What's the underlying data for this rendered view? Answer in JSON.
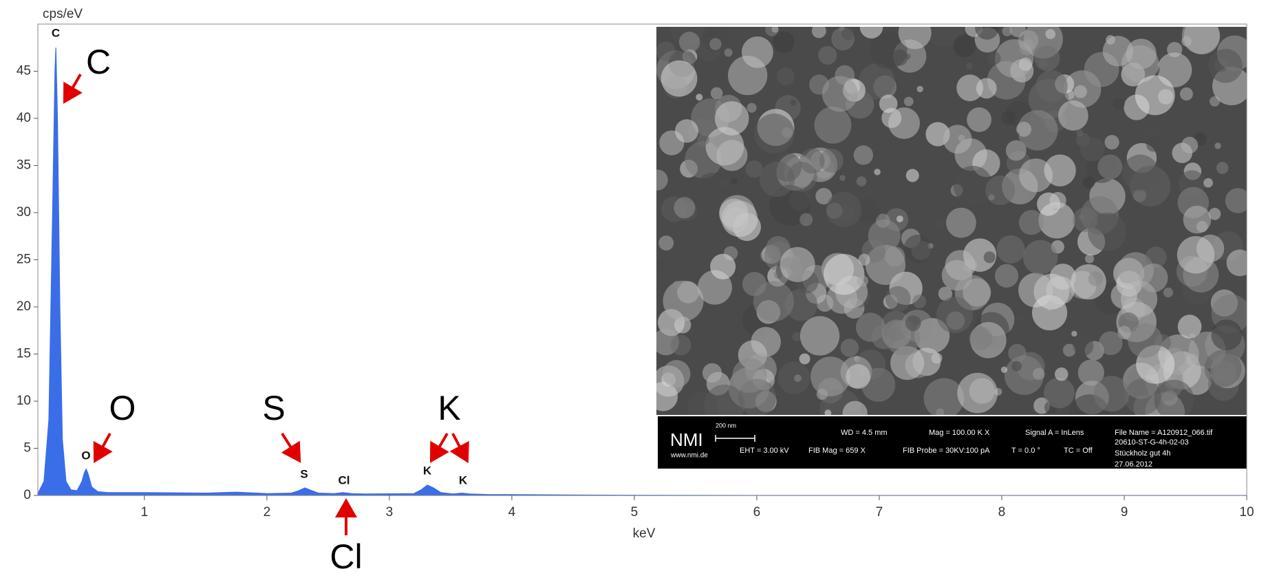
{
  "chart_data": {
    "type": "area",
    "x_label": "keV",
    "y_label": "cps/eV",
    "color": "#3a6ee8",
    "xlim": [
      0.13,
      10
    ],
    "ylim": [
      0,
      50
    ],
    "xticks": [
      1,
      2,
      3,
      4,
      5,
      6,
      7,
      8,
      9,
      10
    ],
    "yticks": [
      0,
      5,
      10,
      15,
      20,
      25,
      30,
      35,
      40,
      45
    ],
    "x": [
      0.13,
      0.18,
      0.22,
      0.25,
      0.27,
      0.277,
      0.29,
      0.31,
      0.33,
      0.36,
      0.4,
      0.45,
      0.49,
      0.51,
      0.525,
      0.54,
      0.57,
      0.62,
      0.7,
      1.0,
      1.5,
      1.75,
      2.0,
      2.2,
      2.26,
      2.31,
      2.36,
      2.42,
      2.55,
      2.62,
      2.69,
      2.8,
      3.2,
      3.26,
      3.31,
      3.36,
      3.42,
      3.52,
      3.59,
      3.66,
      3.8,
      4.5,
      5,
      6,
      7,
      8,
      9,
      10
    ],
    "values": [
      0.2,
      1.5,
      8,
      30,
      45,
      47.5,
      40,
      20,
      6,
      1.5,
      0.6,
      0.5,
      1.5,
      2.4,
      2.8,
      2.3,
      0.9,
      0.4,
      0.3,
      0.3,
      0.25,
      0.35,
      0.2,
      0.25,
      0.5,
      0.8,
      0.55,
      0.25,
      0.2,
      0.3,
      0.2,
      0.15,
      0.2,
      0.6,
      1.1,
      0.8,
      0.3,
      0.15,
      0.25,
      0.15,
      0.1,
      0.05,
      0.02,
      0,
      0,
      0,
      0,
      0
    ],
    "peak_labels": [
      "C",
      "O",
      "S",
      "Cl",
      "K",
      "K"
    ],
    "annotations": [
      "C",
      "O",
      "S",
      "Cl",
      "K"
    ],
    "inset": {
      "logo": "NMI",
      "website": "www.nmi.de",
      "scale_bar": "200 nm",
      "wd": "WD =  4.5 mm",
      "mag": "Mag = 100.00 K X",
      "signal": "Signal A = InLens",
      "file_name": "File Name = A120912_066.tif",
      "eht": "EHT =  3.00 kV",
      "fib_mag": "FIB Mag =    659 X",
      "fib_probe": "FIB Probe = 30KV:100 pA",
      "tilt": "T =   0.0 °",
      "tc": "TC  = Off",
      "sample": "20610-ST-G-4h-02-03",
      "note": "Stückholz gut 4h",
      "date": "27.06.2012"
    }
  }
}
